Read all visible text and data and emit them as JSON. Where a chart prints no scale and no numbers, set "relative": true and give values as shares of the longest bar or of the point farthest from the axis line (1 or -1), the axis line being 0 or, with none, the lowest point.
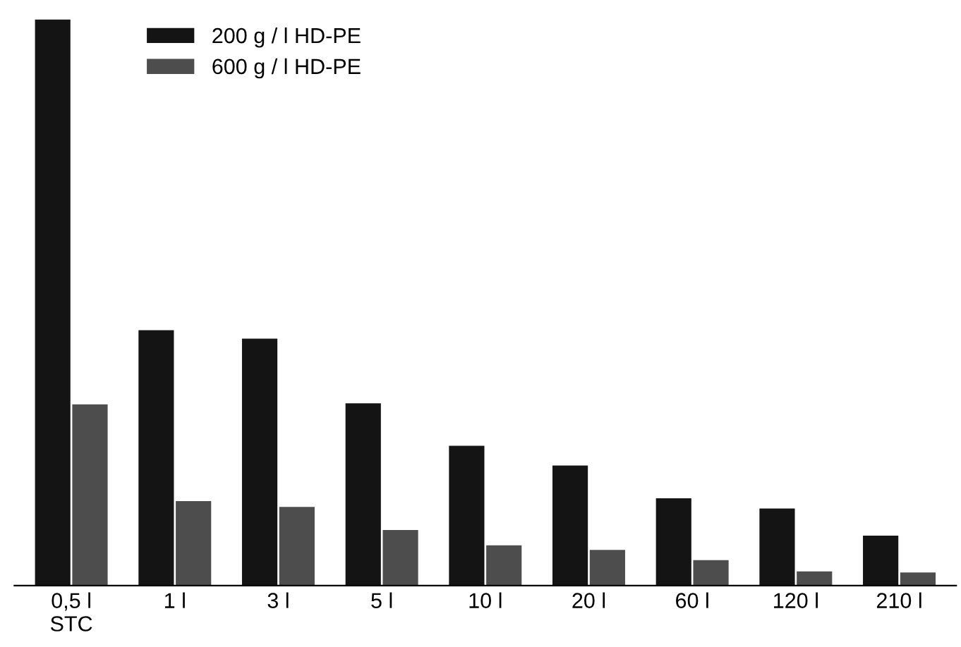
{
  "chart_data": {
    "type": "bar",
    "relative": true,
    "categories": [
      "0,5 l\nSTC",
      "1 l",
      "3 l",
      "5 l",
      "10 l",
      "20 l",
      "60 l",
      "120 l",
      "210 l"
    ],
    "series": [
      {
        "name": "200 g / l HD-PE",
        "color": "#141414",
        "values": [
          1,
          0.451,
          0.436,
          0.322,
          0.247,
          0.212,
          0.154,
          0.136,
          0.088
        ]
      },
      {
        "name": "600 g / l HD-PE",
        "color": "#4d4d4d",
        "values": [
          0.32,
          0.149,
          0.139,
          0.098,
          0.071,
          0.063,
          0.045,
          0.025,
          0.023
        ]
      }
    ],
    "legend": "top left"
  }
}
